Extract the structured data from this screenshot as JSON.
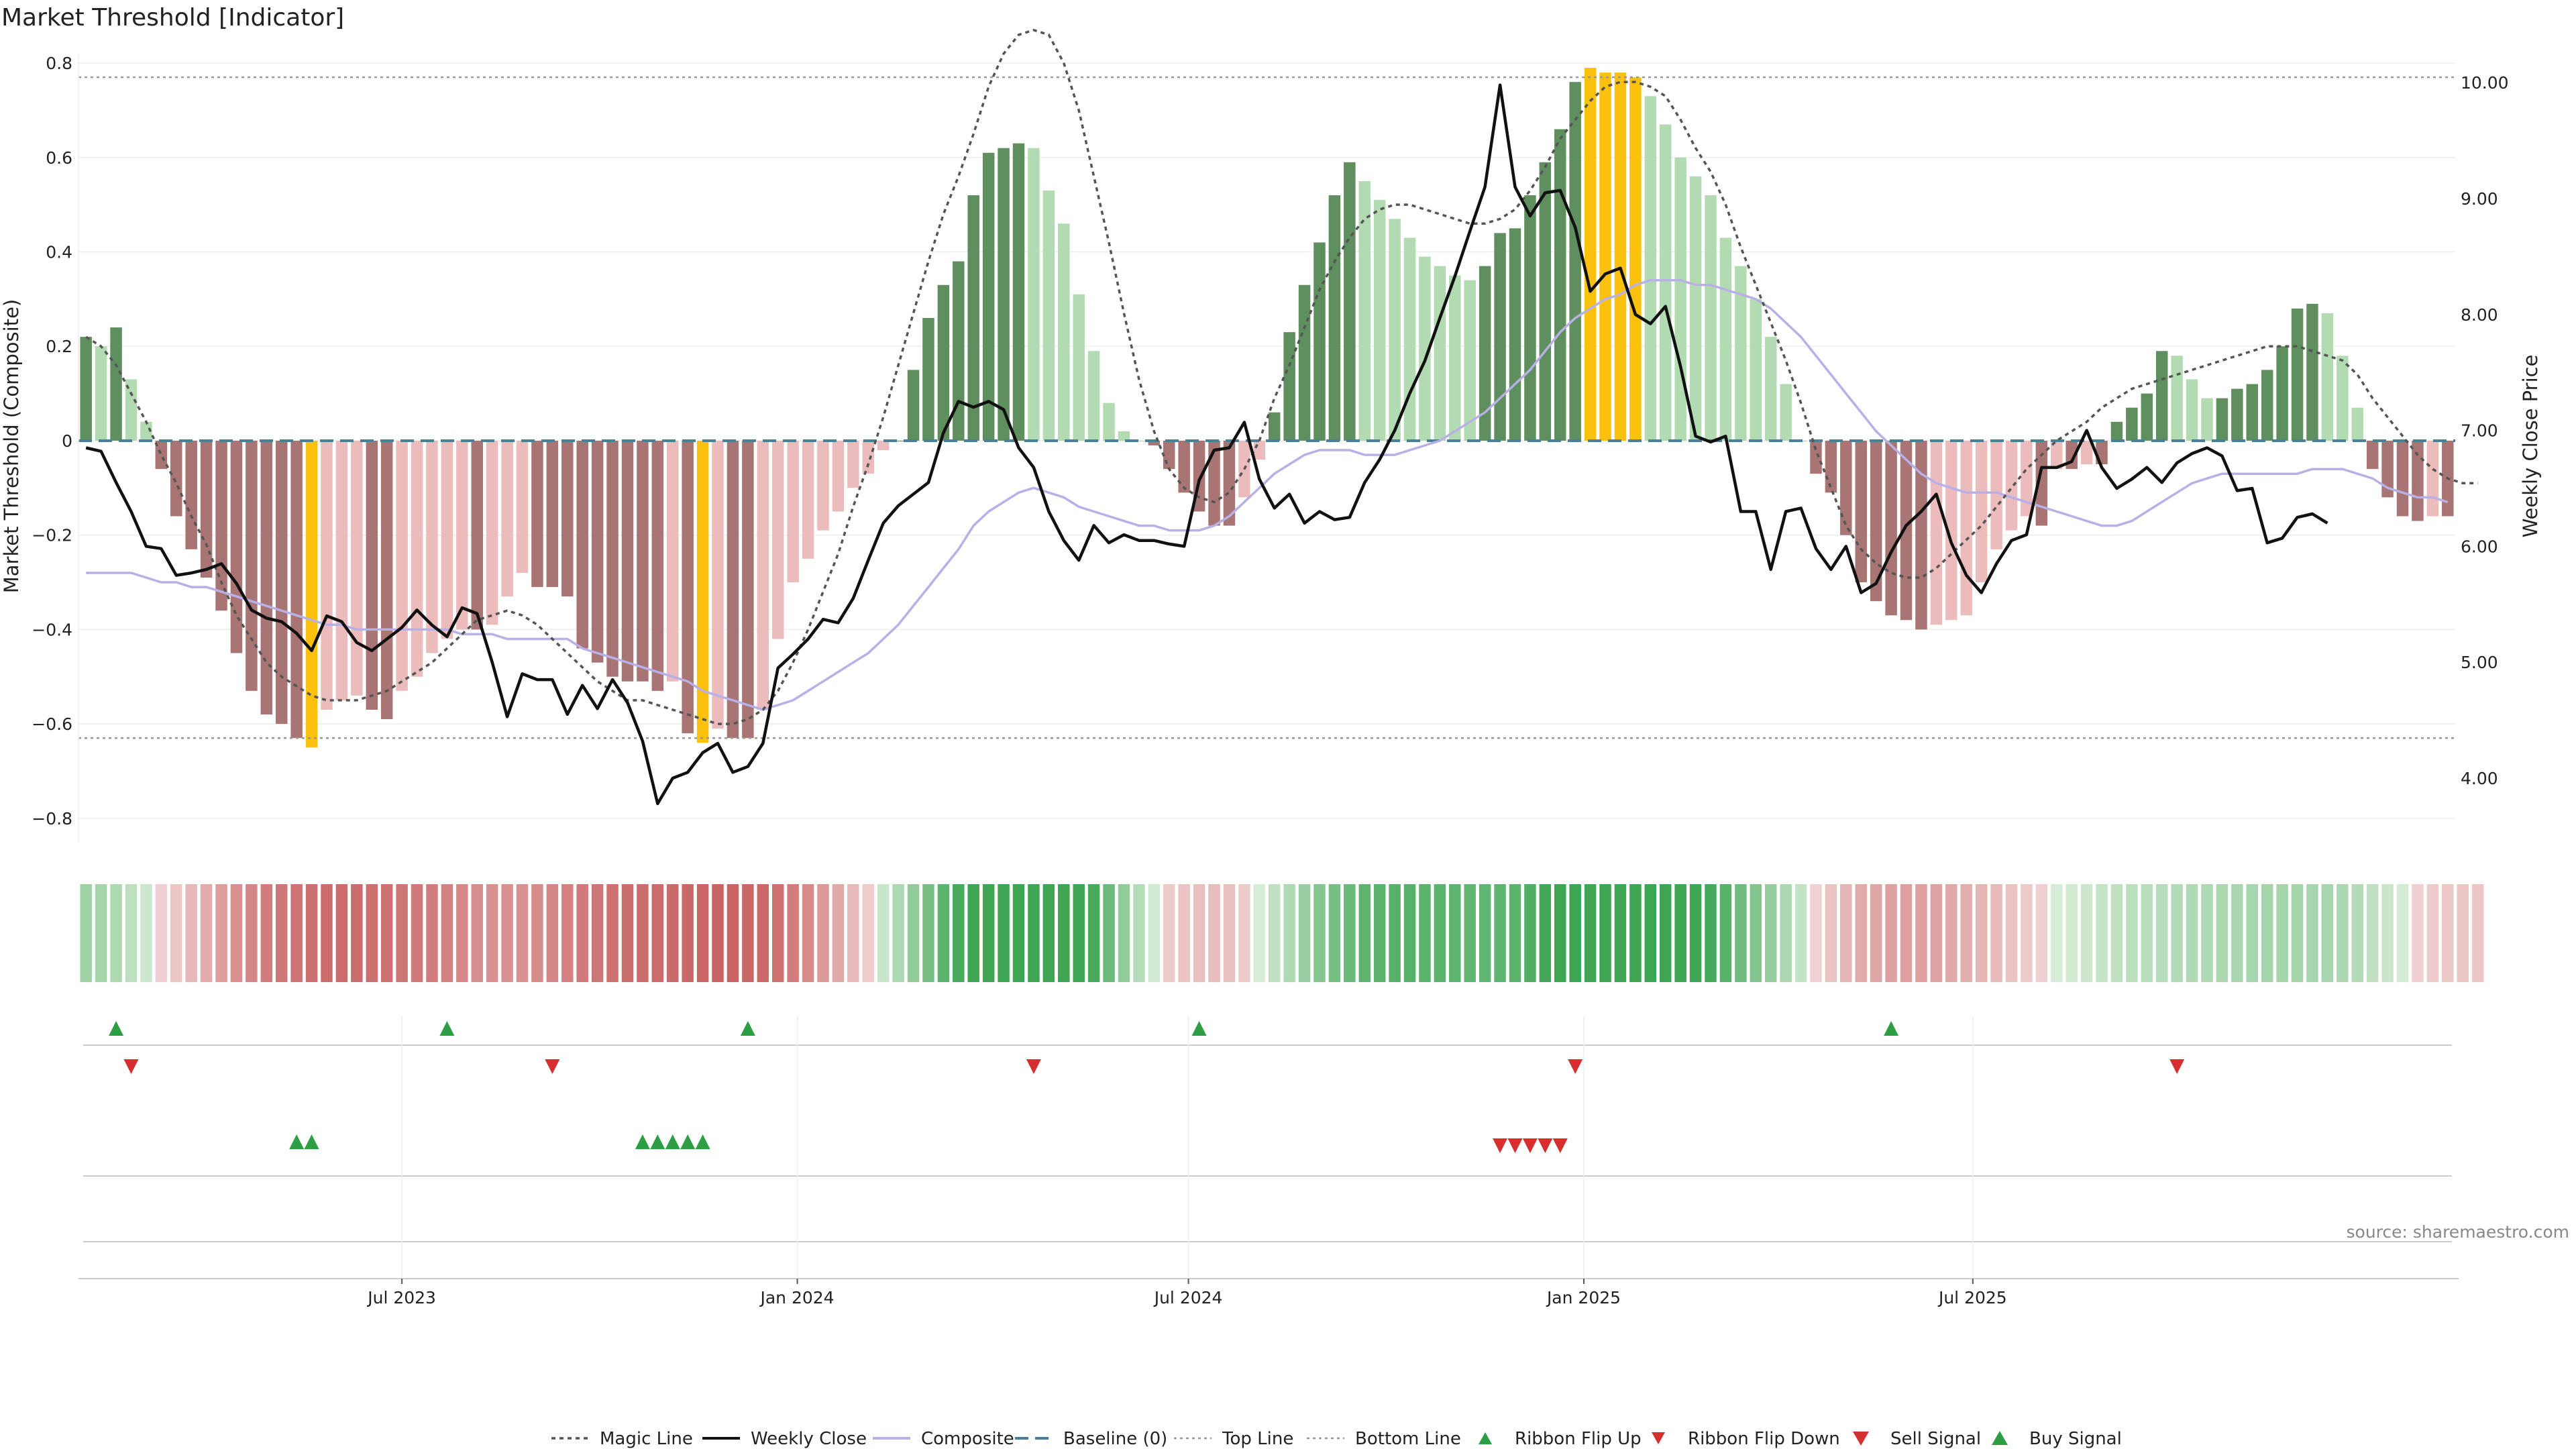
{
  "chart_data": {
    "type": "bar",
    "title": "Market Threshold [Indicator]",
    "ylabel": "Market Threshold (Composite)",
    "y2label": "Weekly Close Price",
    "ylim": [
      -0.85,
      0.82
    ],
    "y2lim": [
      3.45,
      10.25
    ],
    "yticks": [
      0.8,
      0.6,
      0.4,
      0.2,
      0,
      -0.2,
      -0.4,
      -0.6,
      -0.8
    ],
    "ytick_labels": [
      "0.8",
      "0.6",
      "0.4",
      "0.2",
      "0",
      "−0.2",
      "−0.4",
      "−0.6",
      "−0.8"
    ],
    "y2ticks": [
      10,
      9,
      8,
      7,
      6,
      5,
      4
    ],
    "y2tick_labels": [
      "10.00",
      "9.00",
      "8.00",
      "7.00",
      "6.00",
      "5.00",
      "4.00"
    ],
    "top_line": 0.77,
    "bottom_line": -0.63,
    "x_start": "2023-02-04",
    "interval_weeks": 1,
    "xtick_labels": [
      {
        "date": "2023-07-01",
        "label": "Jul 2023"
      },
      {
        "date": "2024-01-01",
        "label": "Jan 2024"
      },
      {
        "date": "2024-07-01",
        "label": "Jul 2024"
      },
      {
        "date": "2025-01-01",
        "label": "Jan 2025"
      },
      {
        "date": "2025-07-01",
        "label": "Jul 2025"
      }
    ],
    "composite_values": [
      0.22,
      0.2,
      0.24,
      0.13,
      0.04,
      -0.06,
      -0.16,
      -0.23,
      -0.29,
      -0.36,
      -0.45,
      -0.53,
      -0.58,
      -0.6,
      -0.63,
      -0.65,
      -0.57,
      -0.55,
      -0.54,
      -0.57,
      -0.59,
      -0.53,
      -0.5,
      -0.45,
      -0.42,
      -0.4,
      -0.4,
      -0.39,
      -0.33,
      -0.28,
      -0.31,
      -0.31,
      -0.33,
      -0.44,
      -0.47,
      -0.5,
      -0.51,
      -0.51,
      -0.53,
      -0.51,
      -0.62,
      -0.64,
      -0.61,
      -0.63,
      -0.63,
      -0.57,
      -0.42,
      -0.3,
      -0.25,
      -0.19,
      -0.15,
      -0.1,
      -0.07,
      -0.02,
      0.0,
      0.15,
      0.26,
      0.33,
      0.38,
      0.52,
      0.61,
      0.62,
      0.63,
      0.62,
      0.53,
      0.46,
      0.31,
      0.19,
      0.08,
      0.02,
      0.0,
      -0.01,
      -0.06,
      -0.11,
      -0.15,
      -0.18,
      -0.18,
      -0.12,
      -0.04,
      0.06,
      0.23,
      0.33,
      0.42,
      0.52,
      0.59,
      0.55,
      0.51,
      0.47,
      0.43,
      0.39,
      0.37,
      0.35,
      0.34,
      0.37,
      0.44,
      0.45,
      0.52,
      0.59,
      0.66,
      0.76,
      0.79,
      0.78,
      0.78,
      0.77,
      0.73,
      0.67,
      0.6,
      0.56,
      0.52,
      0.43,
      0.37,
      0.3,
      0.22,
      0.12,
      0.0,
      -0.07,
      -0.11,
      -0.2,
      -0.3,
      -0.34,
      -0.37,
      -0.38,
      -0.4,
      -0.39,
      -0.38,
      -0.37,
      -0.3,
      -0.23,
      -0.19,
      -0.16,
      -0.18,
      -0.06,
      -0.06,
      -0.05,
      -0.05,
      0.04,
      0.07,
      0.1,
      0.19,
      0.18,
      0.13,
      0.09,
      0.09,
      0.11,
      0.12,
      0.15,
      0.2,
      0.28,
      0.29,
      0.27,
      0.18,
      0.07,
      -0.06,
      -0.12,
      -0.16,
      -0.17,
      -0.16,
      -0.16
    ],
    "weekly_close": [
      6.85,
      6.82,
      6.55,
      6.3,
      6.0,
      5.98,
      5.75,
      5.77,
      5.8,
      5.85,
      5.68,
      5.45,
      5.38,
      5.35,
      5.25,
      5.1,
      5.4,
      5.35,
      5.17,
      5.1,
      5.2,
      5.3,
      5.45,
      5.32,
      5.22,
      5.47,
      5.42,
      5.0,
      4.53,
      4.9,
      4.85,
      4.85,
      4.55,
      4.8,
      4.6,
      4.85,
      4.65,
      4.32,
      3.78,
      4.0,
      4.05,
      4.22,
      4.3,
      4.05,
      4.1,
      4.3,
      4.95,
      5.07,
      5.2,
      5.37,
      5.34,
      5.55,
      5.88,
      6.2,
      6.35,
      6.45,
      6.55,
      6.98,
      7.25,
      7.2,
      7.25,
      7.18,
      6.85,
      6.68,
      6.3,
      6.05,
      5.88,
      6.18,
      6.03,
      6.1,
      6.05,
      6.05,
      6.02,
      6.0,
      6.57,
      6.83,
      6.85,
      7.07,
      6.58,
      6.33,
      6.45,
      6.2,
      6.3,
      6.23,
      6.25,
      6.55,
      6.75,
      7.0,
      7.32,
      7.6,
      7.97,
      8.33,
      8.72,
      9.1,
      9.98,
      9.1,
      8.85,
      9.05,
      9.07,
      8.75,
      8.2,
      8.35,
      8.4,
      8.0,
      7.92,
      8.07,
      7.55,
      6.95,
      6.9,
      6.95,
      6.3,
      6.3,
      5.8,
      6.3,
      6.33,
      5.98,
      5.8,
      6.0,
      5.6,
      5.68,
      5.95,
      6.18,
      6.3,
      6.45,
      6.03,
      5.75,
      5.6,
      5.85,
      6.05,
      6.1,
      6.68,
      6.68,
      6.73,
      7.0,
      6.68,
      6.5,
      6.58,
      6.68,
      6.55,
      6.72,
      6.8,
      6.85,
      6.78,
      6.48,
      6.5,
      6.03,
      6.07,
      6.25,
      6.28,
      6.2
    ],
    "magic_line": [
      0.22,
      0.2,
      0.16,
      0.1,
      0.04,
      -0.03,
      -0.09,
      -0.16,
      -0.22,
      -0.3,
      -0.37,
      -0.42,
      -0.47,
      -0.5,
      -0.52,
      -0.54,
      -0.55,
      -0.55,
      -0.55,
      -0.54,
      -0.53,
      -0.51,
      -0.49,
      -0.47,
      -0.44,
      -0.41,
      -0.38,
      -0.37,
      -0.36,
      -0.37,
      -0.39,
      -0.42,
      -0.45,
      -0.48,
      -0.51,
      -0.53,
      -0.55,
      -0.55,
      -0.56,
      -0.57,
      -0.58,
      -0.59,
      -0.6,
      -0.6,
      -0.59,
      -0.57,
      -0.53,
      -0.47,
      -0.4,
      -0.32,
      -0.24,
      -0.14,
      -0.05,
      0.05,
      0.16,
      0.27,
      0.38,
      0.48,
      0.56,
      0.65,
      0.75,
      0.82,
      0.86,
      0.87,
      0.86,
      0.8,
      0.7,
      0.56,
      0.42,
      0.27,
      0.13,
      0.02,
      -0.06,
      -0.1,
      -0.12,
      -0.13,
      -0.11,
      -0.06,
      0.0,
      0.09,
      0.16,
      0.24,
      0.32,
      0.38,
      0.43,
      0.47,
      0.49,
      0.5,
      0.5,
      0.49,
      0.48,
      0.47,
      0.46,
      0.46,
      0.47,
      0.49,
      0.53,
      0.58,
      0.64,
      0.68,
      0.72,
      0.75,
      0.76,
      0.76,
      0.75,
      0.73,
      0.68,
      0.62,
      0.57,
      0.5,
      0.41,
      0.33,
      0.25,
      0.17,
      0.08,
      -0.02,
      -0.1,
      -0.18,
      -0.23,
      -0.26,
      -0.28,
      -0.29,
      -0.29,
      -0.27,
      -0.24,
      -0.21,
      -0.18,
      -0.14,
      -0.1,
      -0.06,
      -0.03,
      0.0,
      0.02,
      0.04,
      0.07,
      0.09,
      0.11,
      0.12,
      0.13,
      0.14,
      0.15,
      0.16,
      0.17,
      0.18,
      0.19,
      0.2,
      0.2,
      0.2,
      0.19,
      0.18,
      0.17,
      0.14,
      0.09,
      0.05,
      0.01,
      -0.03,
      -0.06,
      -0.08,
      -0.09,
      -0.09
    ],
    "composite_smooth": [
      -0.28,
      -0.28,
      -0.28,
      -0.28,
      -0.29,
      -0.3,
      -0.3,
      -0.31,
      -0.31,
      -0.32,
      -0.33,
      -0.34,
      -0.35,
      -0.36,
      -0.37,
      -0.38,
      -0.39,
      -0.39,
      -0.4,
      -0.4,
      -0.4,
      -0.4,
      -0.4,
      -0.4,
      -0.4,
      -0.41,
      -0.41,
      -0.41,
      -0.42,
      -0.42,
      -0.42,
      -0.42,
      -0.42,
      -0.44,
      -0.45,
      -0.46,
      -0.47,
      -0.48,
      -0.49,
      -0.5,
      -0.51,
      -0.53,
      -0.54,
      -0.55,
      -0.56,
      -0.57,
      -0.56,
      -0.55,
      -0.53,
      -0.51,
      -0.49,
      -0.47,
      -0.45,
      -0.42,
      -0.39,
      -0.35,
      -0.31,
      -0.27,
      -0.23,
      -0.18,
      -0.15,
      -0.13,
      -0.11,
      -0.1,
      -0.11,
      -0.12,
      -0.14,
      -0.15,
      -0.16,
      -0.17,
      -0.18,
      -0.18,
      -0.19,
      -0.19,
      -0.19,
      -0.18,
      -0.16,
      -0.13,
      -0.1,
      -0.07,
      -0.05,
      -0.03,
      -0.02,
      -0.02,
      -0.02,
      -0.03,
      -0.03,
      -0.03,
      -0.02,
      -0.01,
      0.0,
      0.02,
      0.04,
      0.06,
      0.09,
      0.12,
      0.15,
      0.19,
      0.23,
      0.26,
      0.28,
      0.3,
      0.31,
      0.33,
      0.34,
      0.34,
      0.34,
      0.33,
      0.33,
      0.32,
      0.31,
      0.3,
      0.28,
      0.25,
      0.22,
      0.18,
      0.14,
      0.1,
      0.06,
      0.02,
      -0.01,
      -0.04,
      -0.07,
      -0.09,
      -0.1,
      -0.11,
      -0.11,
      -0.11,
      -0.12,
      -0.13,
      -0.14,
      -0.15,
      -0.16,
      -0.17,
      -0.18,
      -0.18,
      -0.17,
      -0.15,
      -0.13,
      -0.11,
      -0.09,
      -0.08,
      -0.07,
      -0.07,
      -0.07,
      -0.07,
      -0.07,
      -0.07,
      -0.06,
      -0.06,
      -0.06,
      -0.07,
      -0.08,
      -0.1,
      -0.11,
      -0.12,
      -0.12,
      -0.13
    ],
    "ribbon_flip_up_index": [
      2,
      24,
      44,
      74,
      120
    ],
    "ribbon_flip_down_index": [
      3,
      31,
      63,
      99,
      139
    ],
    "buy_signal_index": [
      14,
      15,
      37,
      38,
      39,
      40,
      41
    ],
    "sell_signal_index": [
      94,
      95,
      96,
      97,
      98
    ],
    "source": "source: sharemaestro.com",
    "legend": [
      "Magic Line",
      "Weekly Close",
      "Composite",
      "Baseline (0)",
      "Top Line",
      "Bottom Line",
      "Ribbon Flip Up",
      "Ribbon Flip Down",
      "Sell Signal",
      "Buy Signal"
    ],
    "legend_placement": "bottom-center"
  },
  "colors": {
    "bull_strong": "#5f8f5f",
    "bull_weak": "#b2dbb2",
    "bear_strong": "#a87474",
    "bear_weak": "#ecbcbc",
    "extreme": "#fbc10e",
    "close_line": "#111111",
    "composite_line": "#b8b0e6",
    "magic_line": "#555555",
    "baseline": "#4a7f9b",
    "ref_line": "#999999",
    "up_marker": "#2e9e44",
    "down_marker": "#d62f2f",
    "axis": "#cccccc",
    "grid": "#eeeeee"
  }
}
